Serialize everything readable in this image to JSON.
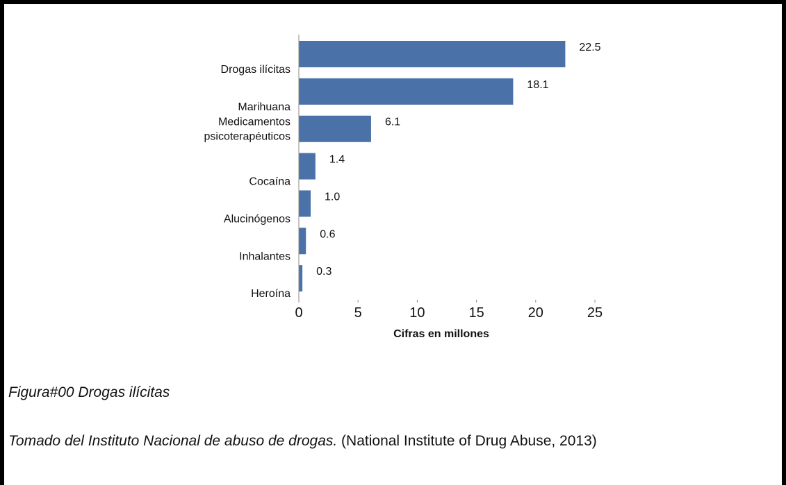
{
  "chart_data": {
    "type": "bar",
    "orientation": "horizontal",
    "categories": [
      [
        "Drogas ilícitas"
      ],
      [
        "Marihuana"
      ],
      [
        "Medicamentos",
        "psicoterapéuticos"
      ],
      [
        "Cocaína"
      ],
      [
        "Alucinógenos"
      ],
      [
        "Inhalantes"
      ],
      [
        "Heroína"
      ]
    ],
    "values": [
      22.5,
      18.1,
      6.1,
      1.4,
      1.0,
      0.6,
      0.3
    ],
    "value_labels": [
      "22.5",
      "18.1",
      "6.1",
      "1.4",
      "1.0",
      "0.6",
      "0.3"
    ],
    "xlabel": "Cifras en millones",
    "xlim": [
      0,
      25
    ],
    "xticks": [
      0,
      5,
      10,
      15,
      20,
      25
    ],
    "bar_color": "#4a72a8",
    "grid": false,
    "legend": "none"
  },
  "captions": {
    "figure": "Figura#00 Drogas ilícitas",
    "source_italic": "Tomado del Instituto Nacional de abuso de drogas.",
    "source_plain": " (National Institute of Drug Abuse, 2013)"
  },
  "colors": {
    "frame": "#000000",
    "text": "#111111",
    "bar": "#4a72a8"
  }
}
